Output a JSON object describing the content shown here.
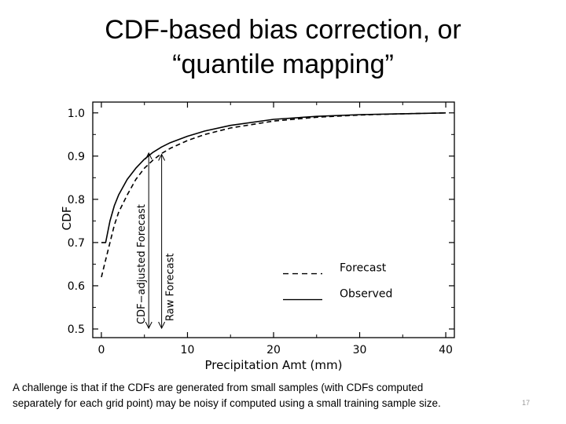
{
  "slide": {
    "title_line1": "CDF-based bias correction, or",
    "title_line2": "“quantile mapping”",
    "caption_line1": "A challenge is that if the CDFs are generated from small samples (with CDFs computed",
    "caption_line2": "separately for each grid point) may be noisy if computed using a small training sample size.",
    "page_number": "17"
  },
  "chart_data": {
    "type": "line",
    "xlabel": "Precipitation Amt (mm)",
    "ylabel": "CDF",
    "xlim": [
      -1,
      41
    ],
    "ylim": [
      0.48,
      1.025
    ],
    "xticks": [
      0,
      10,
      20,
      30,
      40
    ],
    "yticks": [
      0.5,
      0.6,
      0.7,
      0.8,
      0.9,
      1.0
    ],
    "ytick_labels": [
      "0.5",
      "0.6",
      "0.7",
      "0.8",
      "0.9",
      "1.0"
    ],
    "grid": false,
    "legend_position": "center-right",
    "series": [
      {
        "name": "Forecast",
        "style": "dashed",
        "x": [
          0,
          0.5,
          1,
          1.5,
          2,
          3,
          4,
          5,
          6,
          7,
          8,
          10,
          12,
          15,
          20,
          25,
          30,
          35,
          40
        ],
        "y": [
          0.62,
          0.66,
          0.7,
          0.74,
          0.77,
          0.81,
          0.846,
          0.872,
          0.891,
          0.906,
          0.918,
          0.936,
          0.95,
          0.965,
          0.981,
          0.99,
          0.995,
          0.998,
          1.0
        ]
      },
      {
        "name": "Observed",
        "style": "solid",
        "x": [
          0,
          0.5,
          1,
          1.5,
          2,
          3,
          4,
          5,
          6,
          7,
          8,
          10,
          12,
          15,
          20,
          25,
          30,
          35,
          40
        ],
        "y": [
          0.7,
          0.7,
          0.75,
          0.785,
          0.81,
          0.846,
          0.872,
          0.893,
          0.909,
          0.921,
          0.931,
          0.946,
          0.958,
          0.971,
          0.985,
          0.992,
          0.996,
          0.998,
          1.0
        ]
      }
    ],
    "annotations": [
      {
        "text": "CDF−adjusted Forecast",
        "x": 5.5,
        "y_from": 0.909,
        "y_to": 0.5
      },
      {
        "text": "Raw Forecast",
        "x": 7,
        "y_from": 0.906,
        "y_to": 0.5
      }
    ]
  }
}
